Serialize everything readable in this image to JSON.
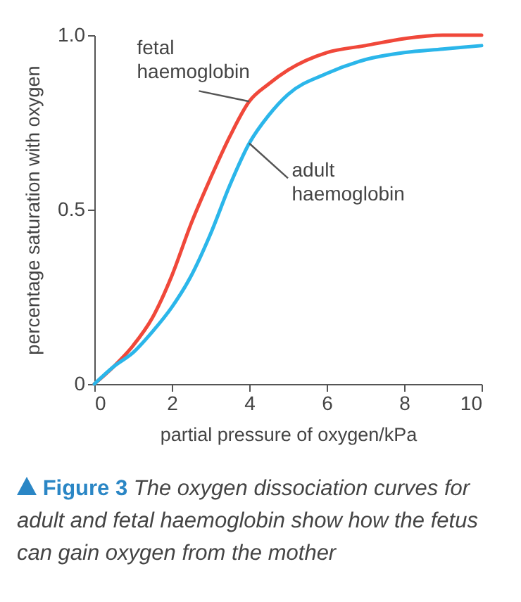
{
  "chart_data": {
    "type": "line",
    "xlabel": "partial pressure of oxygen/kPa",
    "ylabel": "percentage saturation with oxygen",
    "x": [
      0,
      0.5,
      1,
      1.5,
      2,
      2.5,
      3,
      3.5,
      4,
      4.5,
      5,
      6,
      7,
      8,
      9,
      10
    ],
    "series": [
      {
        "name": "fetal haemoglobin",
        "color": "#f0483a",
        "values": [
          0,
          0.05,
          0.11,
          0.19,
          0.31,
          0.46,
          0.59,
          0.71,
          0.81,
          0.86,
          0.9,
          0.95,
          0.97,
          0.99,
          1.0,
          1.0
        ]
      },
      {
        "name": "adult haemoglobin",
        "color": "#2bb6ea",
        "values": [
          0,
          0.05,
          0.09,
          0.15,
          0.22,
          0.31,
          0.43,
          0.57,
          0.69,
          0.77,
          0.83,
          0.89,
          0.93,
          0.95,
          0.96,
          0.97
        ]
      }
    ],
    "xlim": [
      0,
      10
    ],
    "xticks": [
      0,
      2,
      4,
      6,
      8,
      10
    ],
    "ylim": [
      0,
      1
    ],
    "yticks": [
      0,
      0.5,
      {
        "value": 1,
        "label": "1.0"
      }
    ],
    "grid": false,
    "legend": false,
    "marker": "none",
    "line_style": "solid",
    "annotations": [
      "Figure 3",
      "The oxygen dissociation curves for adult and fetal haemoglobin show how the fetus can gain oxygen from the mother"
    ]
  }
}
